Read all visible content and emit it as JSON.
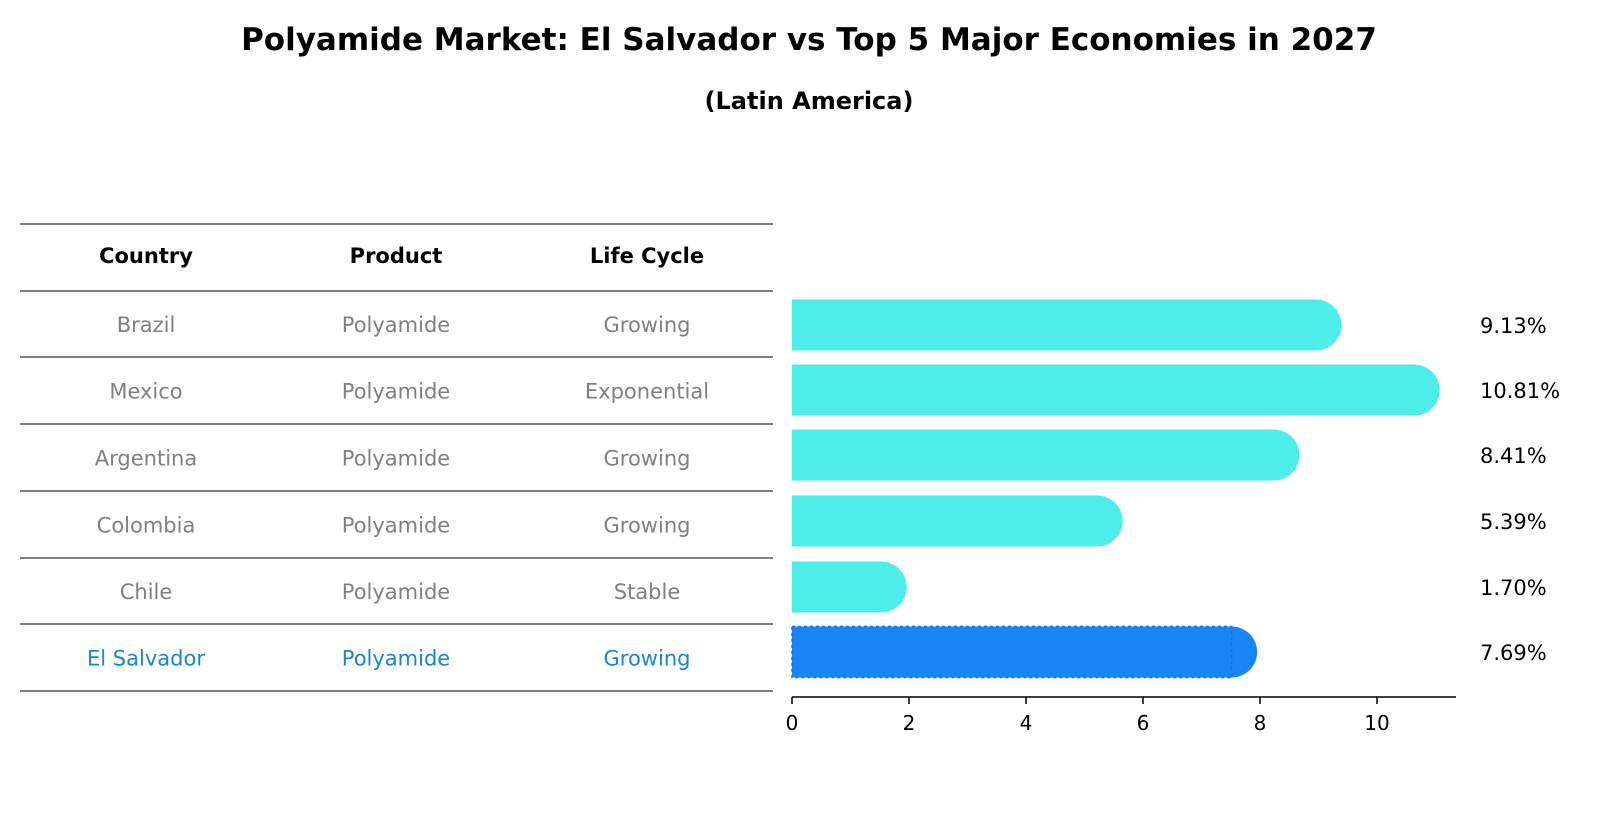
{
  "title": "Polyamide Market: El Salvador vs Top 5 Major Economies in 2027",
  "subtitle": "(Latin America)",
  "colors": {
    "regular_bar": "#4DEEEA",
    "highlight_bar": "#1785F5",
    "regular_text": "#808080",
    "highlight_text": "#1785D8"
  },
  "table": {
    "headers": [
      "Country",
      "Product",
      "Life Cycle"
    ],
    "rows": [
      {
        "country": "Brazil",
        "product": "Polyamide",
        "life_cycle": "Growing",
        "highlight": false
      },
      {
        "country": "Mexico",
        "product": "Polyamide",
        "life_cycle": "Exponential",
        "highlight": false
      },
      {
        "country": "Argentina",
        "product": "Polyamide",
        "life_cycle": "Growing",
        "highlight": false
      },
      {
        "country": "Colombia",
        "product": "Polyamide",
        "life_cycle": "Growing",
        "highlight": false
      },
      {
        "country": "Chile",
        "product": "Polyamide",
        "life_cycle": "Stable",
        "highlight": false
      },
      {
        "country": "El Salvador",
        "product": "Polyamide",
        "life_cycle": "Growing",
        "highlight": true
      }
    ]
  },
  "chart_data": {
    "type": "bar",
    "orientation": "horizontal",
    "title": "Polyamide Market: El Salvador vs Top 5 Major Economies in 2027",
    "subtitle": "(Latin America)",
    "categories": [
      "Brazil",
      "Mexico",
      "Argentina",
      "Colombia",
      "Chile",
      "El Salvador"
    ],
    "values": [
      9.13,
      10.81,
      8.41,
      5.39,
      1.7,
      7.69
    ],
    "value_labels": [
      "9.13%",
      "10.81%",
      "8.41%",
      "5.39%",
      "1.70%",
      "7.69%"
    ],
    "highlight_category": "El Salvador",
    "xlim": [
      0,
      11.35
    ],
    "xticks": [
      0,
      2,
      4,
      6,
      8,
      10
    ],
    "xtick_labels": [
      "0",
      "2",
      "4",
      "6",
      "8",
      "10"
    ],
    "xlabel": "",
    "ylabel": "",
    "grid": false,
    "legend": "none"
  }
}
